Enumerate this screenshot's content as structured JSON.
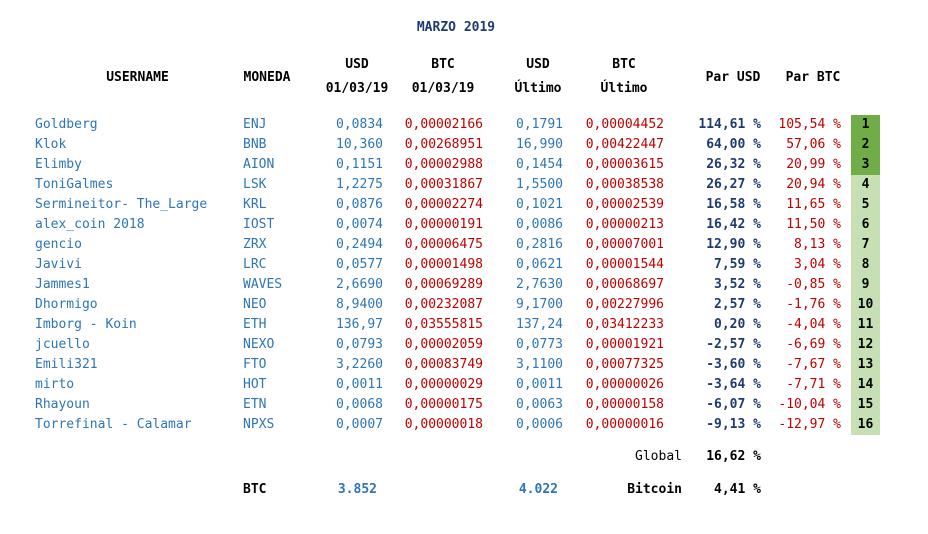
{
  "title": "MARZO 2019",
  "headers": {
    "username": "USERNAME",
    "moneda": "MONEDA",
    "usd_start": [
      "USD",
      "01/03/19"
    ],
    "btc_start": [
      "BTC",
      "01/03/19"
    ],
    "usd_last": [
      "USD",
      "Último"
    ],
    "btc_last": [
      "BTC",
      "Último"
    ],
    "par_usd": "Par USD",
    "par_btc": "Par BTC"
  },
  "rows": [
    {
      "user": "Goldberg",
      "coin": "ENJ",
      "usd1": "0,0834",
      "btc1": "0,00002166",
      "usd2": "0,1791",
      "btc2": "0,00004452",
      "par_usd": "114,61 %",
      "par_btc": "105,54 %",
      "rank": "1"
    },
    {
      "user": "Klok",
      "coin": "BNB",
      "usd1": "10,360",
      "btc1": "0,00268951",
      "usd2": "16,990",
      "btc2": "0,00422447",
      "par_usd": "64,00 %",
      "par_btc": "57,06 %",
      "rank": "2"
    },
    {
      "user": "Elimby",
      "coin": "AION",
      "usd1": "0,1151",
      "btc1": "0,00002988",
      "usd2": "0,1454",
      "btc2": "0,00003615",
      "par_usd": "26,32 %",
      "par_btc": "20,99 %",
      "rank": "3"
    },
    {
      "user": "ToniGalmes",
      "coin": "LSK",
      "usd1": "1,2275",
      "btc1": "0,00031867",
      "usd2": "1,5500",
      "btc2": "0,00038538",
      "par_usd": "26,27 %",
      "par_btc": "20,94 %",
      "rank": "4"
    },
    {
      "user": "Sermineitor- The_Large",
      "coin": "KRL",
      "usd1": "0,0876",
      "btc1": "0,00002274",
      "usd2": "0,1021",
      "btc2": "0,00002539",
      "par_usd": "16,58 %",
      "par_btc": "11,65 %",
      "rank": "5"
    },
    {
      "user": "alex_coin 2018",
      "coin": "IOST",
      "usd1": "0,0074",
      "btc1": "0,00000191",
      "usd2": "0,0086",
      "btc2": "0,00000213",
      "par_usd": "16,42 %",
      "par_btc": "11,50 %",
      "rank": "6"
    },
    {
      "user": "gencio",
      "coin": "ZRX",
      "usd1": "0,2494",
      "btc1": "0,00006475",
      "usd2": "0,2816",
      "btc2": "0,00007001",
      "par_usd": "12,90 %",
      "par_btc": "8,13 %",
      "rank": "7"
    },
    {
      "user": "Javivi",
      "coin": "LRC",
      "usd1": "0,0577",
      "btc1": "0,00001498",
      "usd2": "0,0621",
      "btc2": "0,00001544",
      "par_usd": "7,59 %",
      "par_btc": "3,04 %",
      "rank": "8"
    },
    {
      "user": "Jammes1",
      "coin": "WAVES",
      "usd1": "2,6690",
      "btc1": "0,00069289",
      "usd2": "2,7630",
      "btc2": "0,00068697",
      "par_usd": "3,52 %",
      "par_btc": "-0,85 %",
      "rank": "9"
    },
    {
      "user": "Dhormigo",
      "coin": "NEO",
      "usd1": "8,9400",
      "btc1": "0,00232087",
      "usd2": "9,1700",
      "btc2": "0,00227996",
      "par_usd": "2,57 %",
      "par_btc": "-1,76 %",
      "rank": "10"
    },
    {
      "user": "Imborg - Koin",
      "coin": "ETH",
      "usd1": "136,97",
      "btc1": "0,03555815",
      "usd2": "137,24",
      "btc2": "0,03412233",
      "par_usd": "0,20 %",
      "par_btc": "-4,04 %",
      "rank": "11"
    },
    {
      "user": "jcuello",
      "coin": "NEXO",
      "usd1": "0,0793",
      "btc1": "0,00002059",
      "usd2": "0,0773",
      "btc2": "0,00001921",
      "par_usd": "-2,57 %",
      "par_btc": "-6,69 %",
      "rank": "12"
    },
    {
      "user": "Emili321",
      "coin": "FTO",
      "usd1": "3,2260",
      "btc1": "0,00083749",
      "usd2": "3,1100",
      "btc2": "0,00077325",
      "par_usd": "-3,60 %",
      "par_btc": "-7,67 %",
      "rank": "13"
    },
    {
      "user": "mirto",
      "coin": "HOT",
      "usd1": "0,0011",
      "btc1": "0,00000029",
      "usd2": "0,0011",
      "btc2": "0,00000026",
      "par_usd": "-3,64 %",
      "par_btc": "-7,71 %",
      "rank": "14"
    },
    {
      "user": "Rhayoun",
      "coin": "ETN",
      "usd1": "0,0068",
      "btc1": "0,00000175",
      "usd2": "0,0063",
      "btc2": "0,00000158",
      "par_usd": "-6,07 %",
      "par_btc": "-10,04 %",
      "rank": "15"
    },
    {
      "user": "Torrefinal - Calamar",
      "coin": "NPXS",
      "usd1": "0,0007",
      "btc1": "0,00000018",
      "usd2": "0,0006",
      "btc2": "0,00000016",
      "par_usd": "-9,13 %",
      "par_btc": "-12,97 %",
      "rank": "16"
    }
  ],
  "summary": {
    "global_label": "Global",
    "global_value": "16,62 %",
    "btc_label": "BTC",
    "btc_start": "3.852",
    "btc_last": "4.022",
    "bitcoin_label": "Bitcoin",
    "bitcoin_value": "4,41 %"
  },
  "colors": {
    "blue": "#2e75b6",
    "navy": "#1f3a70",
    "red": "#c00000",
    "rank_top": "#70ad47",
    "rank_rest": "#c6e0b4"
  }
}
